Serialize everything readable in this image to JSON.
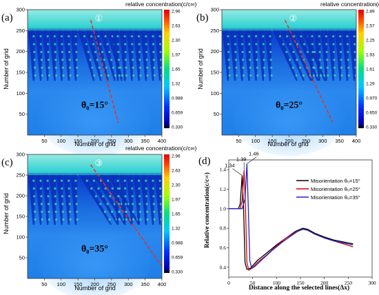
{
  "panels": [
    {
      "letter": "(a)",
      "circled": "①",
      "theta_label": "θ₀=15°",
      "angle_deg": 15,
      "colorbar_title": "relative concentration(c/c∞)",
      "colorbar_ticks": [
        "2.96",
        "2.63",
        "2.30",
        "1.97",
        "1.65",
        "1.32",
        "0.988",
        "0.659",
        "0.330"
      ],
      "xlabel": "Number of grid",
      "ylabel": "Number of grid",
      "xticks": [
        "50",
        "100",
        "150",
        "200",
        "250",
        "300",
        "350",
        "400"
      ],
      "yticks": [
        "50",
        "100",
        "150",
        "200",
        "250",
        "300"
      ]
    },
    {
      "letter": "(b)",
      "circled": "②",
      "theta_label": "θ₀=25°",
      "angle_deg": 25,
      "colorbar_title": "relative concentration(c/c∞)",
      "colorbar_ticks": [
        "2.89",
        "2.57",
        "2.25",
        "1.93",
        "1.61",
        "1.29",
        "0.970",
        "0.650",
        "0.330"
      ],
      "xlabel": "Number of grid",
      "ylabel": "Number of grid",
      "xticks": [
        "50",
        "100",
        "150",
        "200",
        "250",
        "300",
        "350",
        "400"
      ],
      "yticks": [
        "50",
        "100",
        "150",
        "200",
        "250",
        "300"
      ]
    },
    {
      "letter": "(c)",
      "circled": "③",
      "theta_label": "θ₀=35°",
      "angle_deg": 35,
      "colorbar_title": "relative concentration(c/c∞)",
      "colorbar_ticks": [
        "2.96",
        "2.63",
        "2.30",
        "1.97",
        "1.65",
        "1.32",
        "0.988",
        "0.659",
        "0.330"
      ],
      "xlabel": "Number of grid",
      "ylabel": "Number of grid",
      "xticks": [
        "50",
        "100",
        "150",
        "200",
        "250",
        "300",
        "350",
        "400"
      ],
      "yticks": [
        "50",
        "100",
        "150",
        "200",
        "250",
        "300"
      ]
    }
  ],
  "chart_data": {
    "type": "line",
    "letter": "(d)",
    "xlabel": "Distance along the selected lines(Δx)",
    "ylabel": "Relative concentration(c/c∞)",
    "xlim": [
      0,
      300
    ],
    "ylim": [
      0.3,
      1.5
    ],
    "xticks": [
      "0",
      "50",
      "100",
      "150",
      "200",
      "250",
      "300"
    ],
    "yticks": [
      "0.4",
      "0.6",
      "0.8",
      "1.0",
      "1.2",
      "1.4"
    ],
    "peak_labels": [
      "1.34",
      "1.39",
      "1.46"
    ],
    "series": [
      {
        "name": "Misorientation  θ₀=15°",
        "color": "#000000",
        "x": [
          0,
          20,
          24,
          28,
          31,
          34,
          38,
          45,
          60,
          80,
          100,
          120,
          140,
          155,
          165,
          180,
          200,
          220,
          240,
          260
        ],
        "y": [
          1.0,
          1.0,
          1.05,
          1.34,
          1.0,
          0.45,
          0.38,
          0.39,
          0.47,
          0.55,
          0.63,
          0.7,
          0.77,
          0.8,
          0.79,
          0.75,
          0.71,
          0.68,
          0.66,
          0.64
        ]
      },
      {
        "name": "Misorientation  θ₀=25°",
        "color": "#d40000",
        "x": [
          0,
          24,
          28,
          32,
          35,
          38,
          42,
          48,
          60,
          80,
          100,
          120,
          140,
          155,
          165,
          180,
          200,
          220,
          240,
          260
        ],
        "y": [
          1.0,
          1.0,
          1.08,
          1.39,
          1.0,
          0.45,
          0.37,
          0.39,
          0.45,
          0.53,
          0.62,
          0.7,
          0.76,
          0.79,
          0.78,
          0.74,
          0.7,
          0.67,
          0.64,
          0.61
        ]
      },
      {
        "name": "Misorientation  θ₀=35°",
        "color": "#2222cc",
        "x": [
          0,
          28,
          34,
          38,
          41,
          44,
          48,
          55,
          70,
          90,
          110,
          130,
          145,
          155,
          165,
          180,
          200,
          220,
          240,
          260
        ],
        "y": [
          1.0,
          1.0,
          1.1,
          1.46,
          1.0,
          0.47,
          0.39,
          0.41,
          0.48,
          0.57,
          0.65,
          0.72,
          0.77,
          0.79,
          0.78,
          0.74,
          0.7,
          0.67,
          0.65,
          0.63
        ]
      }
    ]
  }
}
